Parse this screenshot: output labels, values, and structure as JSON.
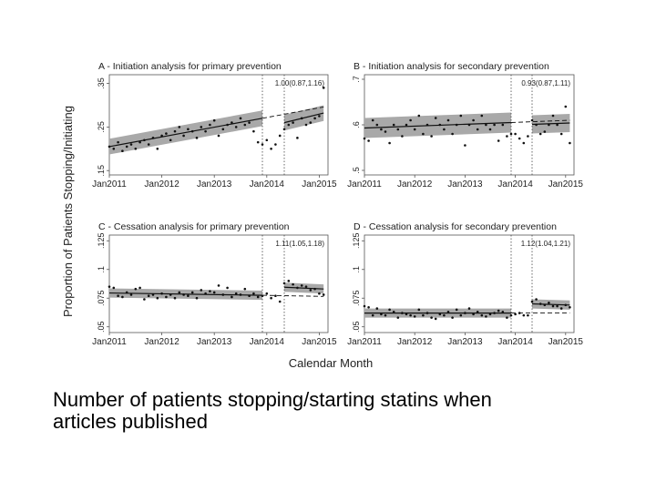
{
  "slide": {
    "caption_line1": "Number of patients stopping/starting statins when",
    "caption_line2": "articles published"
  },
  "figure": {
    "ylabel": "Proportion of Patients Stopping/Initiating",
    "xlabel": "Calendar Month"
  },
  "chart_data": [
    {
      "type": "scatter",
      "panel": "A",
      "title": "A - Initiation analysis for primary prevention",
      "estimate": "1.00(0.87,1.16)",
      "x_ticks": [
        "Jan2011",
        "Jan2012",
        "Jan2013",
        "Jan2014",
        "Jan2015"
      ],
      "xlim": [
        0,
        50
      ],
      "y_ticks": [
        ".15",
        ".25",
        ".35"
      ],
      "y_tick_values": [
        0.15,
        0.25,
        0.35
      ],
      "ylim": [
        0.14,
        0.37
      ],
      "vlines": [
        35,
        40
      ],
      "fit_pre": {
        "x": [
          0,
          35
        ],
        "y": [
          0.205,
          0.27
        ],
        "band": 0.018
      },
      "fit_post": {
        "x": [
          40,
          49
        ],
        "y": [
          0.26,
          0.282
        ],
        "band": 0.018
      },
      "counterfactual": {
        "x": [
          35,
          49
        ],
        "y": [
          0.27,
          0.296
        ]
      },
      "points": {
        "x": [
          0,
          1,
          2,
          3,
          4,
          5,
          6,
          7,
          8,
          9,
          10,
          11,
          12,
          13,
          14,
          15,
          16,
          17,
          18,
          19,
          20,
          21,
          22,
          23,
          24,
          25,
          26,
          27,
          28,
          29,
          30,
          31,
          32,
          33,
          34,
          35,
          36,
          37,
          38,
          39,
          40,
          41,
          42,
          43,
          44,
          45,
          46,
          47,
          48,
          49
        ],
        "y": [
          0.205,
          0.2,
          0.215,
          0.195,
          0.205,
          0.21,
          0.2,
          0.215,
          0.22,
          0.21,
          0.225,
          0.2,
          0.23,
          0.235,
          0.22,
          0.24,
          0.25,
          0.23,
          0.245,
          0.24,
          0.225,
          0.25,
          0.24,
          0.255,
          0.265,
          0.23,
          0.245,
          0.255,
          0.26,
          0.25,
          0.27,
          0.255,
          0.26,
          0.24,
          0.215,
          0.21,
          0.22,
          0.2,
          0.21,
          0.23,
          0.245,
          0.255,
          0.26,
          0.225,
          0.27,
          0.255,
          0.26,
          0.27,
          0.275,
          0.34
        ]
      }
    },
    {
      "type": "scatter",
      "panel": "B",
      "title": "B - Initiation analysis for secondary prevention",
      "estimate": "0.93(0.87,1.11)",
      "x_ticks": [
        "Jan2011",
        "Jan2012",
        "Jan2013",
        "Jan2014",
        "Jan2015"
      ],
      "xlim": [
        0,
        50
      ],
      "y_ticks": [
        ".5",
        ".6",
        ".7"
      ],
      "y_tick_values": [
        0.5,
        0.6,
        0.7
      ],
      "ylim": [
        0.49,
        0.71
      ],
      "vlines": [
        35,
        40
      ],
      "fit_pre": {
        "x": [
          0,
          35
        ],
        "y": [
          0.593,
          0.605
        ],
        "band": 0.022
      },
      "fit_post": {
        "x": [
          40,
          49
        ],
        "y": [
          0.601,
          0.604
        ],
        "band": 0.02
      },
      "counterfactual": {
        "x": [
          35,
          49
        ],
        "y": [
          0.605,
          0.61
        ]
      },
      "points": {
        "x": [
          0,
          1,
          2,
          3,
          4,
          5,
          6,
          7,
          8,
          9,
          10,
          11,
          12,
          13,
          14,
          15,
          16,
          17,
          18,
          19,
          20,
          21,
          22,
          23,
          24,
          25,
          26,
          27,
          28,
          29,
          30,
          31,
          32,
          33,
          34,
          35,
          36,
          37,
          38,
          39,
          40,
          41,
          42,
          43,
          44,
          45,
          46,
          47,
          48,
          49
        ],
        "y": [
          0.57,
          0.565,
          0.61,
          0.6,
          0.59,
          0.585,
          0.56,
          0.6,
          0.59,
          0.575,
          0.6,
          0.61,
          0.59,
          0.62,
          0.58,
          0.6,
          0.575,
          0.615,
          0.6,
          0.59,
          0.61,
          0.58,
          0.6,
          0.62,
          0.555,
          0.6,
          0.61,
          0.59,
          0.62,
          0.6,
          0.59,
          0.6,
          0.565,
          0.6,
          0.575,
          0.58,
          0.58,
          0.57,
          0.56,
          0.575,
          0.61,
          0.6,
          0.58,
          0.585,
          0.6,
          0.62,
          0.6,
          0.58,
          0.64,
          0.56
        ]
      }
    },
    {
      "type": "scatter",
      "panel": "C",
      "title": "C - Cessation analysis for primary prevention",
      "estimate": "1.11(1.05,1.18)",
      "x_ticks": [
        "Jan2011",
        "Jan2012",
        "Jan2013",
        "Jan2014",
        "Jan2015"
      ],
      "xlim": [
        0,
        50
      ],
      "y_ticks": [
        ".05",
        ".075",
        ".1",
        ".125"
      ],
      "y_tick_values": [
        0.05,
        0.075,
        0.1,
        0.125
      ],
      "ylim": [
        0.045,
        0.13
      ],
      "vlines": [
        35,
        40
      ],
      "fit_pre": {
        "x": [
          0,
          35
        ],
        "y": [
          0.0795,
          0.0775
        ],
        "band": 0.004
      },
      "fit_post": {
        "x": [
          40,
          49
        ],
        "y": [
          0.0845,
          0.083
        ],
        "band": 0.004
      },
      "counterfactual": {
        "x": [
          35,
          49
        ],
        "y": [
          0.0775,
          0.0765
        ]
      },
      "points": {
        "x": [
          0,
          1,
          2,
          3,
          4,
          5,
          6,
          7,
          8,
          9,
          10,
          11,
          12,
          13,
          14,
          15,
          16,
          17,
          18,
          19,
          20,
          21,
          22,
          23,
          24,
          25,
          26,
          27,
          28,
          29,
          30,
          31,
          32,
          33,
          34,
          35,
          36,
          37,
          38,
          39,
          40,
          41,
          42,
          43,
          44,
          45,
          46,
          47,
          48,
          49
        ],
        "y": [
          0.085,
          0.084,
          0.077,
          0.076,
          0.08,
          0.078,
          0.083,
          0.084,
          0.074,
          0.077,
          0.078,
          0.075,
          0.079,
          0.076,
          0.078,
          0.075,
          0.08,
          0.078,
          0.077,
          0.08,
          0.075,
          0.082,
          0.079,
          0.081,
          0.08,
          0.086,
          0.078,
          0.084,
          0.076,
          0.079,
          0.078,
          0.083,
          0.077,
          0.079,
          0.076,
          0.077,
          0.079,
          0.075,
          0.077,
          0.072,
          0.088,
          0.09,
          0.087,
          0.084,
          0.086,
          0.085,
          0.082,
          0.083,
          0.079,
          0.078
        ]
      }
    },
    {
      "type": "scatter",
      "panel": "D",
      "title": "D - Cessation analysis for secondary prevention",
      "estimate": "1.12(1.04,1.21)",
      "x_ticks": [
        "Jan2011",
        "Jan2012",
        "Jan2013",
        "Jan2014",
        "Jan2015"
      ],
      "xlim": [
        0,
        50
      ],
      "y_ticks": [
        ".05",
        ".075",
        ".1",
        ".125"
      ],
      "y_tick_values": [
        0.05,
        0.075,
        0.1,
        0.125
      ],
      "ylim": [
        0.045,
        0.13
      ],
      "vlines": [
        35,
        40
      ],
      "fit_pre": {
        "x": [
          0,
          35
        ],
        "y": [
          0.062,
          0.062
        ],
        "band": 0.004
      },
      "fit_post": {
        "x": [
          40,
          49
        ],
        "y": [
          0.07,
          0.069
        ],
        "band": 0.004
      },
      "counterfactual": {
        "x": [
          35,
          49
        ],
        "y": [
          0.062,
          0.062
        ]
      },
      "points": {
        "x": [
          0,
          1,
          2,
          3,
          4,
          5,
          6,
          7,
          8,
          9,
          10,
          11,
          12,
          13,
          14,
          15,
          16,
          17,
          18,
          19,
          20,
          21,
          22,
          23,
          24,
          25,
          26,
          27,
          28,
          29,
          30,
          31,
          32,
          33,
          34,
          35,
          36,
          37,
          38,
          39,
          40,
          41,
          42,
          43,
          44,
          45,
          46,
          47,
          48,
          49
        ],
        "y": [
          0.068,
          0.067,
          0.06,
          0.066,
          0.061,
          0.06,
          0.065,
          0.063,
          0.058,
          0.062,
          0.061,
          0.06,
          0.059,
          0.065,
          0.06,
          0.062,
          0.058,
          0.057,
          0.061,
          0.06,
          0.063,
          0.058,
          0.065,
          0.06,
          0.062,
          0.066,
          0.061,
          0.063,
          0.06,
          0.059,
          0.061,
          0.062,
          0.064,
          0.063,
          0.058,
          0.06,
          0.061,
          0.062,
          0.06,
          0.06,
          0.072,
          0.074,
          0.07,
          0.069,
          0.071,
          0.068,
          0.068,
          0.066,
          0.069,
          0.067
        ]
      }
    }
  ]
}
